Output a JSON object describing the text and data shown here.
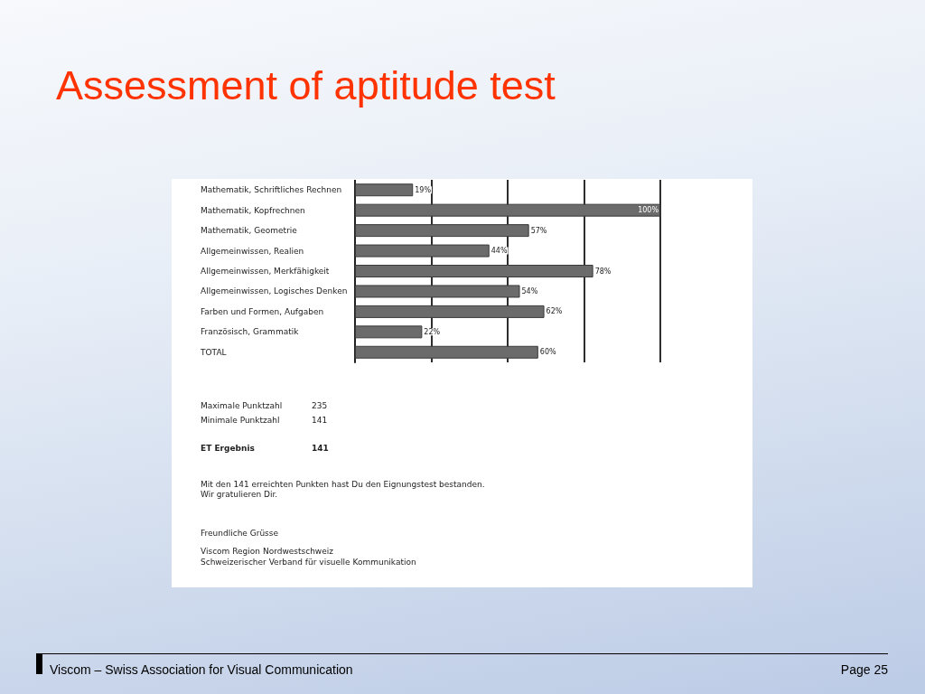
{
  "chart_data": {
    "type": "bar",
    "orientation": "horizontal",
    "title": "Assessment of aptitude test",
    "categories": [
      "Mathematik, Schriftliches Rechnen",
      "Mathematik, Kopfrechnen",
      "Mathematik, Geometrie",
      "Allgemeinwissen, Realien",
      "Allgemeinwissen, Merkfähigkeit",
      "Allgemeinwissen, Logisches Denken",
      "Farben und Formen, Aufgaben",
      "Französisch, Grammatik",
      "TOTAL"
    ],
    "values": [
      19,
      100,
      57,
      44,
      78,
      54,
      62,
      22,
      60
    ],
    "value_labels": [
      "19%",
      "100%",
      "57%",
      "44%",
      "78%",
      "54%",
      "62%",
      "22%",
      "60%"
    ],
    "color": "#6b6b6b",
    "xlim": [
      0,
      100
    ],
    "xticks": [
      {
        "value": 25,
        "label": null
      },
      {
        "value": 50,
        "label": null
      },
      {
        "value": 75,
        "label": null
      },
      {
        "value": 100,
        "label": null
      }
    ],
    "grid": "x",
    "tick_labels": "y",
    "annotations": [
      "Maximale Punktzahl",
      "235",
      "Minimale Punktzahl",
      "141",
      "ET Ergebnis",
      "141",
      "Mit den 141 erreichten Punkten hast Du den Eignungstest bestanden.",
      "Wir gratulieren Dir.",
      "Freundliche Grüsse",
      "Viscom Region Nordwestschweiz",
      "Schweizerischer Verband für visuelle Kommunikation",
      "Viscom – Swiss Association for Visual Communication",
      "Page 25"
    ]
  }
}
